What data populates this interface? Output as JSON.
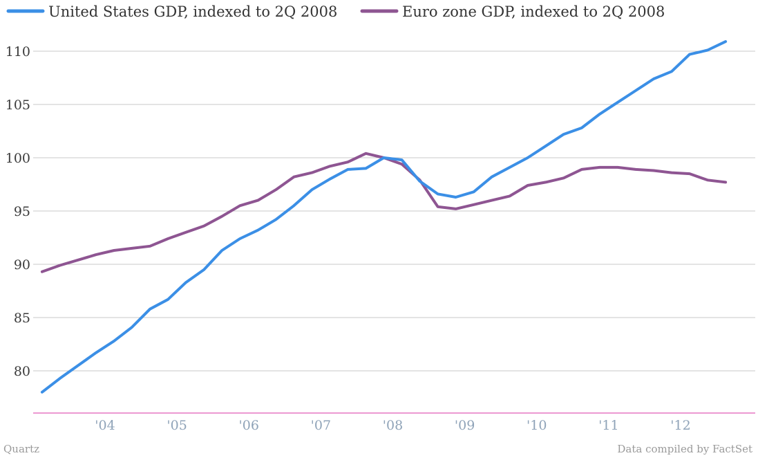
{
  "chart_data": {
    "type": "line",
    "title": "",
    "xlabel": "",
    "ylabel": "",
    "ylim": [
      76,
      112
    ],
    "grid": true,
    "legend_position": "top-left",
    "y_ticks": [
      80,
      85,
      90,
      95,
      100,
      105,
      110
    ],
    "x_ticks": [
      {
        "label": "'04",
        "value": 2004.0
      },
      {
        "label": "'05",
        "value": 2005.0
      },
      {
        "label": "'06",
        "value": 2006.0
      },
      {
        "label": "'07",
        "value": 2007.0
      },
      {
        "label": "'08",
        "value": 2008.0
      },
      {
        "label": "'09",
        "value": 2009.0
      },
      {
        "label": "'10",
        "value": 2010.0
      },
      {
        "label": "'11",
        "value": 2011.0
      },
      {
        "label": "'12",
        "value": 2012.0
      }
    ],
    "x": [
      2003.125,
      2003.375,
      2003.625,
      2003.875,
      2004.125,
      2004.375,
      2004.625,
      2004.875,
      2005.125,
      2005.375,
      2005.625,
      2005.875,
      2006.125,
      2006.375,
      2006.625,
      2006.875,
      2007.125,
      2007.375,
      2007.625,
      2007.875,
      2008.125,
      2008.375,
      2008.625,
      2008.875,
      2009.125,
      2009.375,
      2009.625,
      2009.875,
      2010.125,
      2010.375,
      2010.625,
      2010.875,
      2011.125,
      2011.375,
      2011.625,
      2011.875,
      2012.125,
      2012.375,
      2012.625
    ],
    "series": [
      {
        "name": "United States GDP, indexed to 2Q 2008",
        "color": "#3b8fe6",
        "values": [
          78.0,
          79.3,
          80.5,
          81.7,
          82.8,
          84.1,
          85.8,
          86.7,
          88.3,
          89.5,
          91.3,
          92.4,
          93.2,
          94.2,
          95.5,
          97.0,
          98.0,
          98.9,
          99.0,
          100.0,
          99.8,
          97.8,
          96.6,
          96.3,
          96.8,
          98.2,
          99.1,
          100.0,
          101.1,
          102.2,
          102.8,
          104.1,
          105.2,
          106.3,
          107.4,
          108.1,
          109.7,
          110.1,
          110.9
        ]
      },
      {
        "name": "Euro zone GDP, indexed to 2Q 2008",
        "color": "#8e5592",
        "values": [
          89.3,
          89.9,
          90.4,
          90.9,
          91.3,
          91.5,
          91.7,
          92.4,
          93.0,
          93.6,
          94.5,
          95.5,
          96.0,
          97.0,
          98.2,
          98.6,
          99.2,
          99.6,
          100.4,
          100.0,
          99.4,
          97.9,
          95.4,
          95.2,
          95.6,
          96.0,
          96.4,
          97.4,
          97.7,
          98.1,
          98.9,
          99.1,
          99.1,
          98.9,
          98.8,
          98.6,
          98.5,
          97.9,
          97.7
        ]
      }
    ]
  },
  "footer": {
    "source_left": "Quartz",
    "source_right": "Data compiled by FactSet"
  }
}
